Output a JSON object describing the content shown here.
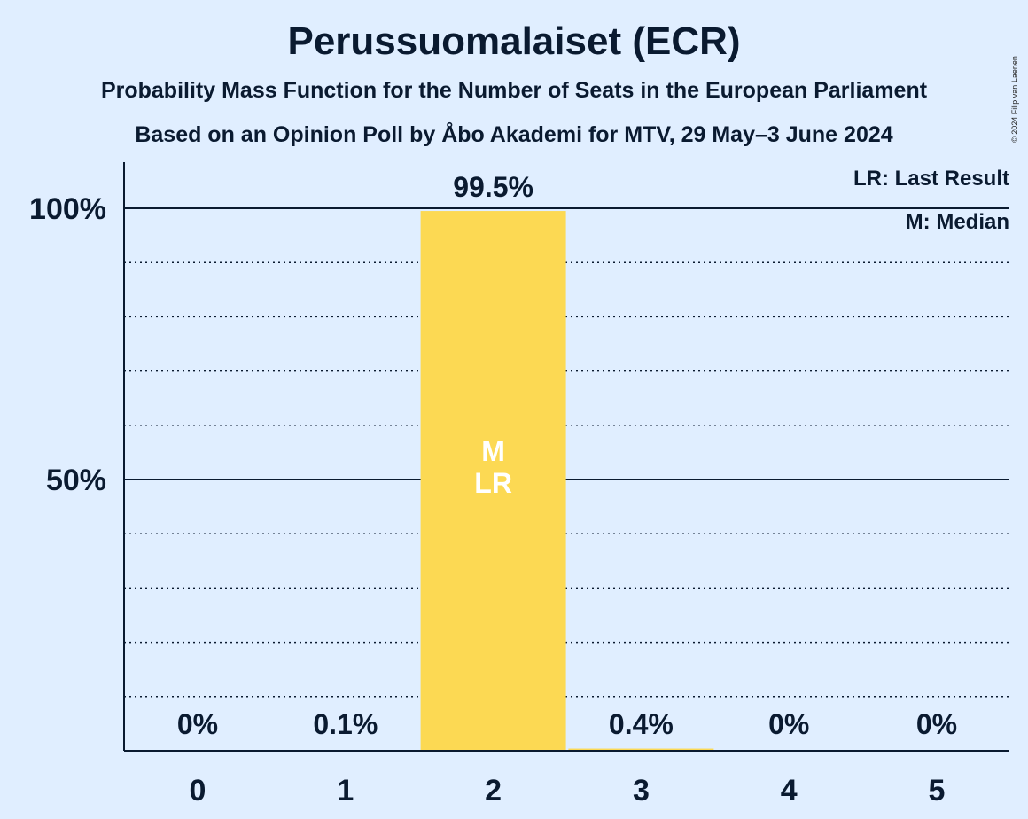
{
  "title": "Perussuomalaiset (ECR)",
  "subtitle_line1": "Probability Mass Function for the Number of Seats in the European Parliament",
  "subtitle_line2": "Based on an Opinion Poll by Åbo Akademi for MTV, 29 May–3 June 2024",
  "copyright": "© 2024 Filip van Laenen",
  "legend": {
    "last_result": "LR: Last Result",
    "median": "M: Median"
  },
  "colors": {
    "background": "#e0eeff",
    "bar": "#fcd953",
    "text": "#0a1a30",
    "marker_text": "#ffffff"
  },
  "chart_data": {
    "type": "bar",
    "categories": [
      "0",
      "1",
      "2",
      "3",
      "4",
      "5"
    ],
    "values": [
      0,
      0.1,
      99.5,
      0.4,
      0,
      0
    ],
    "value_labels": [
      "0%",
      "0.1%",
      "99.5%",
      "0.4%",
      "0%",
      "0%"
    ],
    "ylim": [
      0,
      100
    ],
    "yticks": [
      {
        "value": 50,
        "label": "50%"
      },
      {
        "value": 100,
        "label": "100%"
      }
    ],
    "minor_gridlines": [
      10,
      20,
      30,
      40,
      60,
      70,
      80,
      90
    ],
    "grid": true,
    "legend_placement": "top-right",
    "markers": [
      {
        "category": "2",
        "lines": [
          "M",
          "LR"
        ]
      }
    ]
  }
}
